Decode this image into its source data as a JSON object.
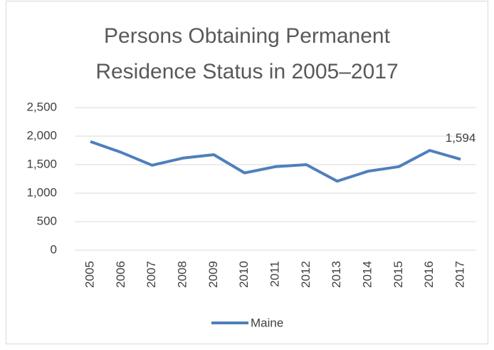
{
  "chart_data": {
    "type": "line",
    "title": "Persons Obtaining Permanent Residence Status in 2005–2017",
    "categories": [
      "2005",
      "2006",
      "2007",
      "2008",
      "2009",
      "2010",
      "2011",
      "2012",
      "2013",
      "2014",
      "2015",
      "2016",
      "2017"
    ],
    "series": [
      {
        "name": "Maine",
        "color": "#4f7fbc",
        "values": [
          1905,
          1715,
          1490,
          1615,
          1675,
          1355,
          1465,
          1500,
          1210,
          1385,
          1465,
          1750,
          1594
        ],
        "value_labels": [
          null,
          null,
          null,
          null,
          null,
          null,
          null,
          null,
          null,
          null,
          null,
          null,
          "1,594"
        ]
      }
    ],
    "ylim": [
      0,
      2500
    ],
    "yticks": [
      0,
      500,
      {
        "value": 1000,
        "label": "1,000"
      },
      {
        "value": 1500,
        "label": "1,500"
      },
      {
        "value": 2000,
        "label": "2,000"
      },
      {
        "value": 2500,
        "label": "2,500"
      }
    ],
    "grid": true,
    "legend": "bottom"
  }
}
